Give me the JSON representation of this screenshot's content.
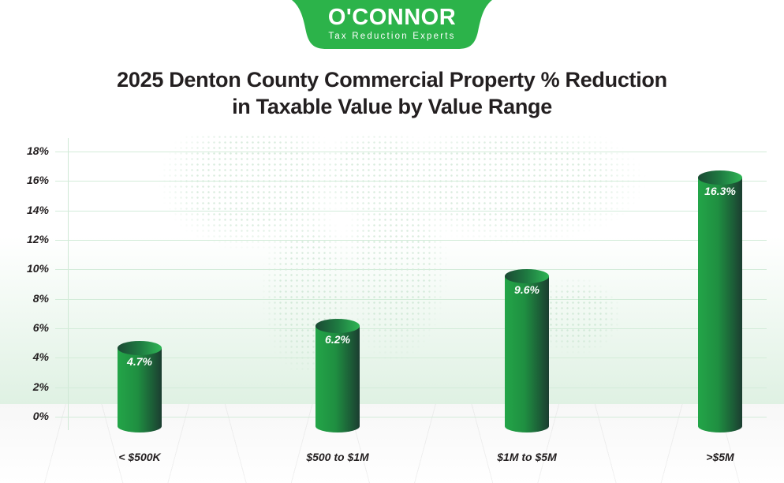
{
  "brand": {
    "name": "O'CONNOR",
    "tagline": "Tax Reduction Experts",
    "color": "#2cb34a"
  },
  "title": {
    "line1": "2025 Denton County Commercial Property % Reduction",
    "line2": "in Taxable Value by Value Range"
  },
  "y_ticks": [
    "18%",
    "16%",
    "14%",
    "12%",
    "10%",
    "8%",
    "6%",
    "4%",
    "2%",
    "0%"
  ],
  "bars": [
    {
      "category": "< $500K",
      "value": 4.7,
      "label": "4.7%"
    },
    {
      "category": "$500 to $1M",
      "value": 6.2,
      "label": "6.2%"
    },
    {
      "category": "$1M to $5M",
      "value": 9.6,
      "label": "9.6%"
    },
    {
      "category": ">$5M",
      "value": 16.3,
      "label": "16.3%"
    }
  ],
  "chart_data": {
    "type": "bar",
    "title": "2025 Denton County Commercial Property % Reduction in Taxable Value by Value Range",
    "categories": [
      "< $500K",
      "$500 to $1M",
      "$1M to $5M",
      ">$5M"
    ],
    "values": [
      4.7,
      6.2,
      9.6,
      16.3
    ],
    "data_labels": [
      "4.7%",
      "6.2%",
      "9.6%",
      "16.3%"
    ],
    "xlabel": "",
    "ylabel": "",
    "ylim": [
      0,
      18
    ],
    "y_ticks": [
      "0%",
      "2%",
      "4%",
      "6%",
      "8%",
      "10%",
      "12%",
      "14%",
      "16%",
      "18%"
    ],
    "grid": true,
    "legend": "none",
    "bar_style": "3D cylinder",
    "bar_color": "#1f8f41"
  }
}
